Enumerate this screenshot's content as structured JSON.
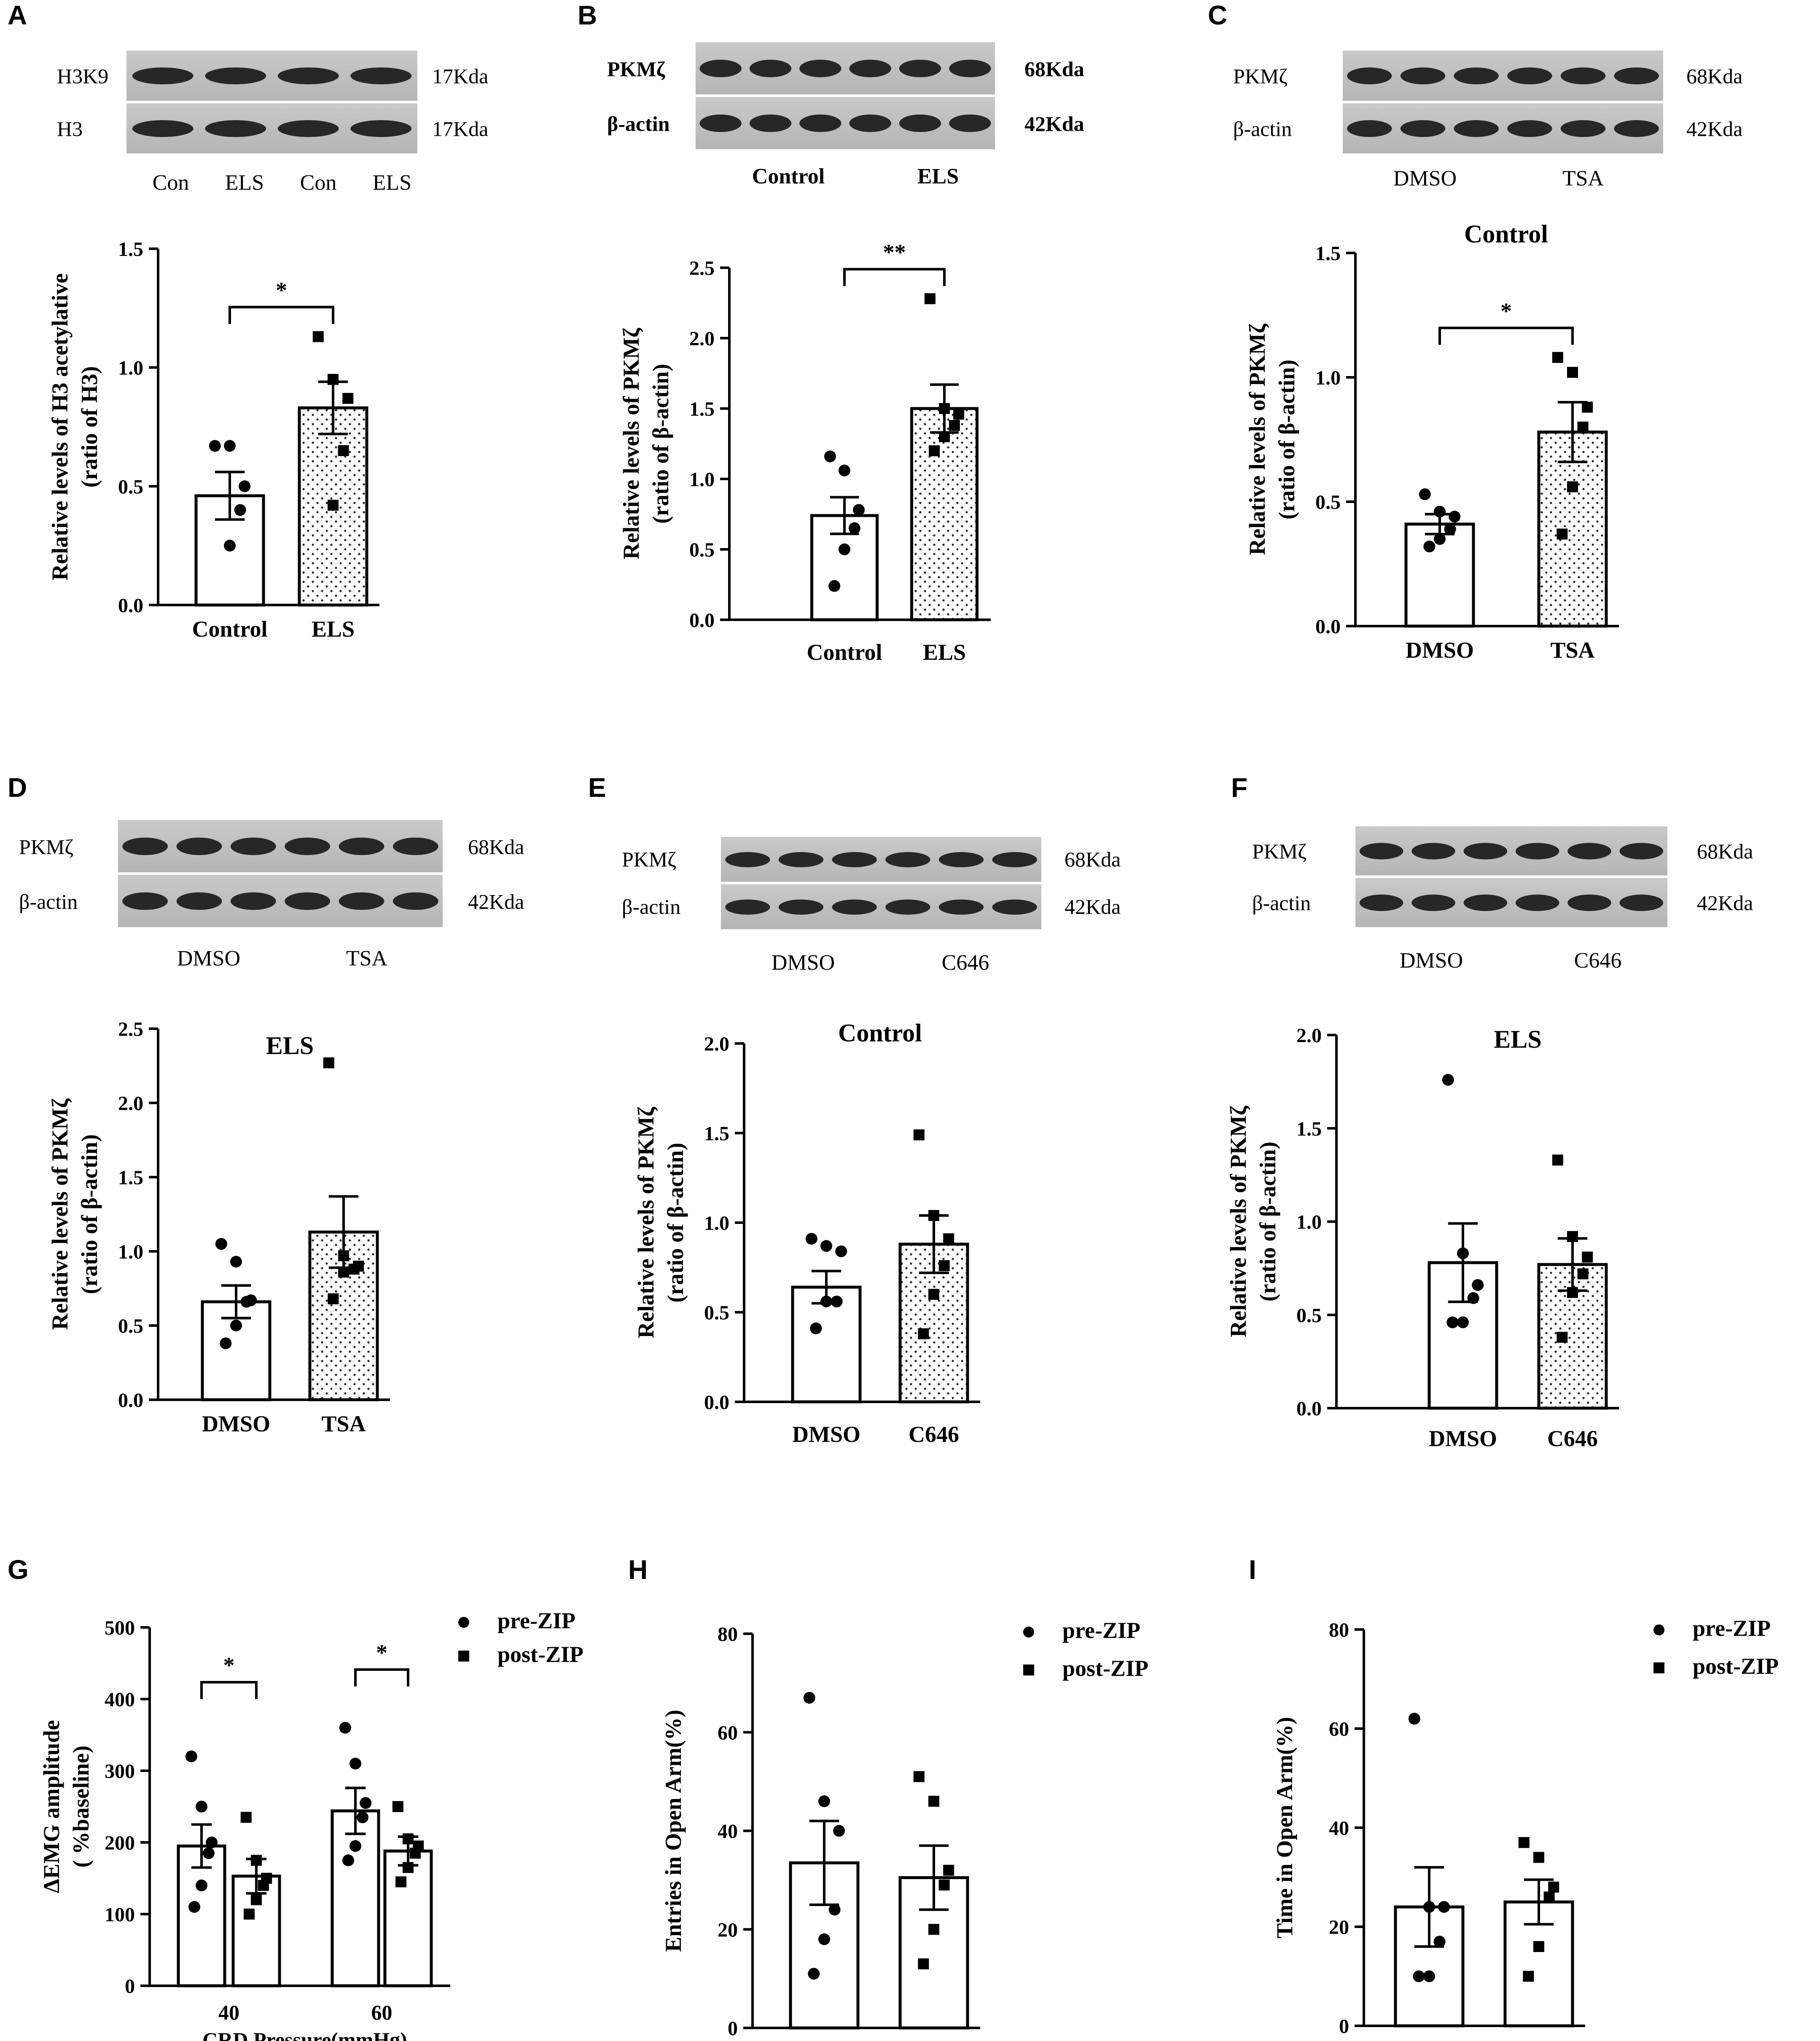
{
  "chart_data": [
    {
      "panel": "A",
      "type": "bar",
      "blot": {
        "bands": [
          {
            "name": "H3K9",
            "size": "17Kda"
          },
          {
            "name": "H3",
            "size": "17Kda"
          }
        ],
        "lane_labels": [
          "Con",
          "ELS",
          "Con",
          "ELS"
        ]
      },
      "title": "",
      "ylabel_lines": [
        "Relative levels of H3 acetylative",
        "(ratio of H3)"
      ],
      "ylim": [
        0,
        1.5
      ],
      "yticks": [
        "0.0",
        "0.5",
        "1.0",
        "1.5"
      ],
      "categories": [
        "Control",
        "ELS"
      ],
      "values": [
        0.46,
        0.83
      ],
      "sem": [
        0.1,
        0.11
      ],
      "points": [
        [
          0.67,
          0.67,
          0.5,
          0.4,
          0.25
        ],
        [
          1.13,
          0.95,
          0.87,
          0.65,
          0.42
        ]
      ],
      "significance": [
        {
          "label": "*"
        }
      ]
    },
    {
      "panel": "B",
      "type": "bar",
      "blot": {
        "bands": [
          {
            "name": "PKMζ",
            "size": "68Kda"
          },
          {
            "name": "β-actin",
            "size": "42Kda"
          }
        ],
        "lane_labels": [
          "Control",
          "ELS"
        ]
      },
      "title": "",
      "ylabel_lines": [
        "Relative levels of PKMζ",
        "(ratio of β-actin)"
      ],
      "ylim": [
        0,
        2.5
      ],
      "yticks": [
        "0.0",
        "0.5",
        "1.0",
        "1.5",
        "2.0",
        "2.5"
      ],
      "categories": [
        "Control",
        "ELS"
      ],
      "values": [
        0.74,
        1.5
      ],
      "sem": [
        0.13,
        0.17
      ],
      "points": [
        [
          1.16,
          1.06,
          0.78,
          0.65,
          0.5,
          0.24
        ],
        [
          2.28,
          1.5,
          1.46,
          1.38,
          1.3,
          1.2
        ]
      ],
      "significance": [
        {
          "label": "**"
        }
      ]
    },
    {
      "panel": "C",
      "type": "bar",
      "blot": {
        "bands": [
          {
            "name": "PKMζ",
            "size": "68Kda"
          },
          {
            "name": "β-actin",
            "size": "42Kda"
          }
        ],
        "lane_labels": [
          "DMSO",
          "TSA"
        ]
      },
      "title": "Control",
      "ylabel_lines": [
        "Relative levels of PKMζ",
        "(ratio of β-actin)"
      ],
      "ylim": [
        0,
        1.5
      ],
      "yticks": [
        "0.0",
        "0.5",
        "1.0",
        "1.5"
      ],
      "categories": [
        "DMSO",
        "TSA"
      ],
      "values": [
        0.41,
        0.78
      ],
      "sem": [
        0.04,
        0.12
      ],
      "points": [
        [
          0.53,
          0.46,
          0.44,
          0.39,
          0.35,
          0.32
        ],
        [
          1.08,
          1.02,
          0.88,
          0.8,
          0.56,
          0.37
        ]
      ],
      "significance": [
        {
          "label": "*"
        }
      ]
    },
    {
      "panel": "D",
      "type": "bar",
      "blot": {
        "bands": [
          {
            "name": "PKMζ",
            "size": "68Kda"
          },
          {
            "name": "β-actin",
            "size": "42Kda"
          }
        ],
        "lane_labels": [
          "DMSO",
          "TSA"
        ]
      },
      "title": "ELS",
      "ylabel_lines": [
        "Relative levels of PKMζ",
        "(ratio of β-actin)"
      ],
      "ylim": [
        0,
        2.5
      ],
      "yticks": [
        "0.0",
        "0.5",
        "1.0",
        "1.5",
        "2.0",
        "2.5"
      ],
      "categories": [
        "DMSO",
        "TSA"
      ],
      "values": [
        0.66,
        1.13
      ],
      "sem": [
        0.11,
        0.24
      ],
      "points": [
        [
          1.05,
          0.93,
          0.67,
          0.66,
          0.5,
          0.38
        ],
        [
          2.27,
          0.97,
          0.9,
          0.88,
          0.86,
          0.68
        ]
      ],
      "significance": []
    },
    {
      "panel": "E",
      "type": "bar",
      "blot": {
        "bands": [
          {
            "name": "PKMζ",
            "size": "68Kda"
          },
          {
            "name": "β-actin",
            "size": "42Kda"
          }
        ],
        "lane_labels": [
          "DMSO",
          "C646"
        ]
      },
      "title": "Control",
      "ylabel_lines": [
        "Relative levels of PKMζ",
        "(ratio of β-actin)"
      ],
      "ylim": [
        0,
        2.0
      ],
      "yticks": [
        "0.0",
        "0.5",
        "1.0",
        "1.5",
        "2.0"
      ],
      "categories": [
        "DMSO",
        "C646"
      ],
      "values": [
        0.64,
        0.88
      ],
      "sem": [
        0.09,
        0.16
      ],
      "points": [
        [
          0.91,
          0.87,
          0.84,
          0.56,
          0.56,
          0.41
        ],
        [
          1.49,
          1.04,
          0.91,
          0.76,
          0.6,
          0.38
        ]
      ],
      "significance": []
    },
    {
      "panel": "F",
      "type": "bar",
      "blot": {
        "bands": [
          {
            "name": "PKMζ",
            "size": "68Kda"
          },
          {
            "name": "β-actin",
            "size": "42Kda"
          }
        ],
        "lane_labels": [
          "DMSO",
          "C646"
        ]
      },
      "title": "ELS",
      "ylabel_lines": [
        "Relative levels of PKMζ",
        "(ratio of β-actin)"
      ],
      "ylim": [
        0,
        2.0
      ],
      "yticks": [
        "0.0",
        "0.5",
        "1.0",
        "1.5",
        "2.0"
      ],
      "categories": [
        "DMSO",
        "C646"
      ],
      "values": [
        0.78,
        0.77
      ],
      "sem": [
        0.21,
        0.14
      ],
      "points": [
        [
          1.76,
          0.83,
          0.66,
          0.59,
          0.46,
          0.46
        ],
        [
          1.33,
          0.92,
          0.81,
          0.72,
          0.62,
          0.38
        ]
      ],
      "significance": []
    },
    {
      "panel": "G",
      "type": "bar",
      "title": "",
      "ylabel_lines": [
        "ΔEMG amplitude",
        "( %baseline)"
      ],
      "xlabel": "CRD Pressure(mmHg)",
      "ylim": [
        0,
        500
      ],
      "yticks": [
        "0",
        "100",
        "200",
        "300",
        "400",
        "500"
      ],
      "categories": [
        "40",
        "60"
      ],
      "legend": [
        "pre-ZIP",
        "post-ZIP"
      ],
      "legend_position": "top-right",
      "series": [
        {
          "name": "pre-ZIP",
          "values": [
            195,
            244
          ],
          "sem": [
            30,
            32
          ],
          "points": [
            [
              320,
              250,
              200,
              185,
              140,
              110
            ],
            [
              360,
              310,
              255,
              235,
              195,
              175
            ]
          ]
        },
        {
          "name": "post-ZIP",
          "values": [
            153,
            188
          ],
          "sem": [
            24,
            20
          ],
          "points": [
            [
              235,
              175,
              150,
              140,
              120,
              100
            ],
            [
              250,
              205,
              195,
              185,
              165,
              145
            ]
          ]
        }
      ],
      "significance": [
        {
          "label": "*"
        },
        {
          "label": "*"
        }
      ]
    },
    {
      "panel": "H",
      "type": "bar",
      "title": "",
      "ylabel_lines": [
        "Entries in Open Arm(%)"
      ],
      "ylim": [
        0,
        80
      ],
      "yticks": [
        "0",
        "20",
        "40",
        "60",
        "80"
      ],
      "categories": [
        "pre-ZIP",
        "post-ZIP"
      ],
      "legend": [
        "pre-ZIP",
        "post-ZIP"
      ],
      "legend_position": "top-right",
      "values": [
        33.5,
        30.5
      ],
      "sem": [
        8.5,
        6.5
      ],
      "points": [
        [
          67,
          46,
          40,
          24,
          18,
          11
        ],
        [
          51,
          46,
          32,
          29,
          20,
          13
        ]
      ],
      "significance": []
    },
    {
      "panel": "I",
      "type": "bar",
      "title": "",
      "ylabel_lines": [
        "Time in Open Arm(%)"
      ],
      "ylim": [
        0,
        80
      ],
      "yticks": [
        "0",
        "20",
        "40",
        "60",
        "80"
      ],
      "categories": [
        "pre-ZIP",
        "post-ZIP"
      ],
      "legend": [
        "pre-ZIP",
        "post-ZIP"
      ],
      "legend_position": "top-right",
      "values": [
        24,
        25
      ],
      "sem": [
        8,
        4.5
      ],
      "points": [
        [
          62,
          24,
          24,
          17,
          10,
          10
        ],
        [
          37,
          34,
          28,
          26,
          16,
          10
        ]
      ],
      "significance": []
    }
  ]
}
